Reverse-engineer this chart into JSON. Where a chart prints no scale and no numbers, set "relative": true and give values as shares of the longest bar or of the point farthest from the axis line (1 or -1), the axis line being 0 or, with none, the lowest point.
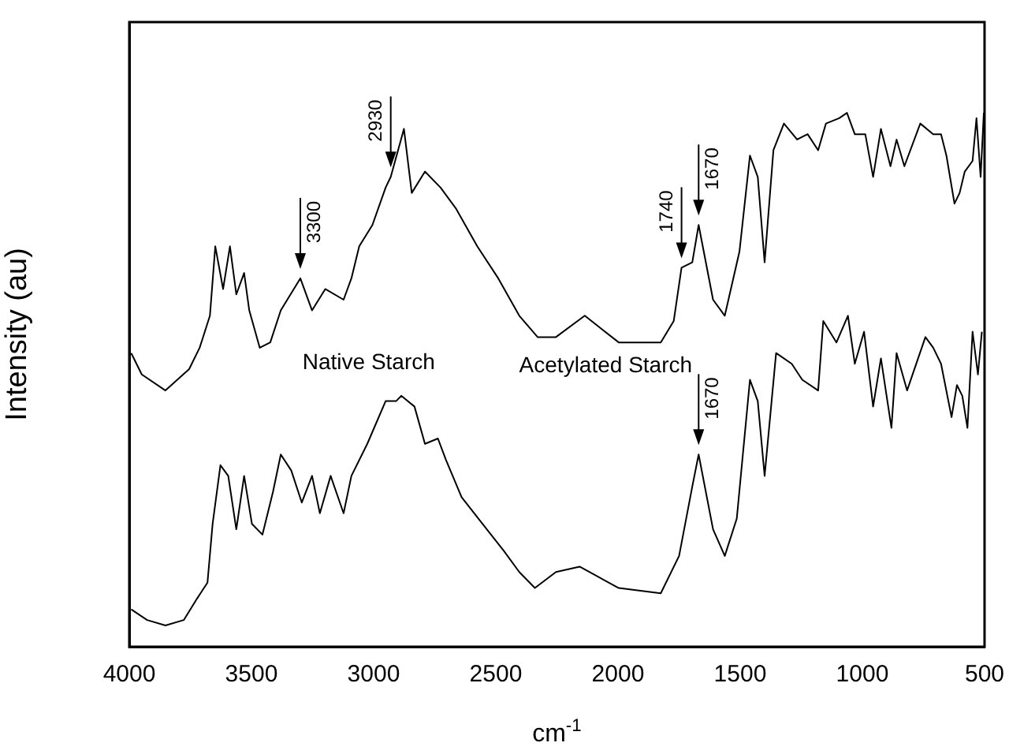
{
  "chart_data": {
    "type": "line",
    "relative": true,
    "xlabel": "cm$^{-1}$",
    "ylabel": "Intensity (au)",
    "xlim": [
      4000,
      500
    ],
    "xticks": [
      4000,
      3500,
      3000,
      2500,
      2000,
      1500,
      1000,
      500
    ],
    "grid": false,
    "legend": false,
    "marker": "none",
    "line_style": "solid",
    "series": [
      {
        "name": "Acetylated Starch",
        "color": "#000000",
        "x": [
          3992,
          3949,
          3852,
          3755,
          3712,
          3670,
          3648,
          3616,
          3588,
          3562,
          3530,
          3509,
          3466,
          3423,
          3380,
          3300,
          3252,
          3198,
          3123,
          3091,
          3059,
          3005,
          2951,
          2930,
          2876,
          2844,
          2790,
          2726,
          2662,
          2576,
          2490,
          2404,
          2329,
          2254,
          2136,
          1997,
          1825,
          1772,
          1740,
          1696,
          1670,
          1611,
          1563,
          1503,
          1460,
          1428,
          1400,
          1364,
          1321,
          1267,
          1224,
          1181,
          1149,
          1095,
          1063,
          1031,
          988,
          956,
          924,
          885,
          860,
          828,
          763,
          710,
          678,
          656,
          623,
          602,
          581,
          549,
          533,
          516,
          503
        ],
        "values": [
          0.55,
          0.51,
          0.48,
          0.52,
          0.56,
          0.62,
          0.75,
          0.67,
          0.75,
          0.66,
          0.7,
          0.63,
          0.56,
          0.57,
          0.63,
          0.69,
          0.63,
          0.67,
          0.65,
          0.69,
          0.75,
          0.79,
          0.86,
          0.88,
          0.97,
          0.85,
          0.89,
          0.86,
          0.82,
          0.75,
          0.69,
          0.62,
          0.58,
          0.58,
          0.62,
          0.57,
          0.57,
          0.61,
          0.71,
          0.72,
          0.79,
          0.65,
          0.62,
          0.74,
          0.92,
          0.88,
          0.72,
          0.93,
          0.98,
          0.95,
          0.96,
          0.93,
          0.98,
          0.99,
          1.0,
          0.96,
          0.96,
          0.88,
          0.97,
          0.9,
          0.95,
          0.9,
          0.98,
          0.96,
          0.96,
          0.92,
          0.83,
          0.85,
          0.89,
          0.91,
          0.99,
          0.88,
          1.0
        ]
      },
      {
        "name": "Native Starch",
        "color": "#000000",
        "x": [
          3992,
          3927,
          3852,
          3777,
          3723,
          3680,
          3659,
          3627,
          3595,
          3562,
          3530,
          3498,
          3455,
          3412,
          3380,
          3337,
          3294,
          3252,
          3220,
          3176,
          3123,
          3091,
          3026,
          2951,
          2908,
          2887,
          2833,
          2790,
          2737,
          2704,
          2640,
          2554,
          2468,
          2404,
          2340,
          2254,
          2157,
          1997,
          1825,
          1750,
          1696,
          1670,
          1611,
          1563,
          1514,
          1460,
          1428,
          1400,
          1353,
          1289,
          1246,
          1181,
          1160,
          1106,
          1059,
          1031,
          993,
          956,
          924,
          881,
          860,
          817,
          742,
          710,
          678,
          635,
          613,
          591,
          570,
          549,
          527,
          511
        ],
        "values": [
          0.07,
          0.05,
          0.04,
          0.05,
          0.09,
          0.12,
          0.23,
          0.34,
          0.32,
          0.22,
          0.32,
          0.23,
          0.21,
          0.29,
          0.36,
          0.33,
          0.27,
          0.32,
          0.25,
          0.32,
          0.25,
          0.32,
          0.38,
          0.46,
          0.46,
          0.47,
          0.45,
          0.38,
          0.39,
          0.35,
          0.28,
          0.23,
          0.18,
          0.14,
          0.11,
          0.14,
          0.15,
          0.11,
          0.1,
          0.17,
          0.3,
          0.36,
          0.22,
          0.17,
          0.24,
          0.5,
          0.46,
          0.32,
          0.55,
          0.53,
          0.5,
          0.48,
          0.61,
          0.57,
          0.62,
          0.53,
          0.59,
          0.45,
          0.54,
          0.41,
          0.55,
          0.48,
          0.58,
          0.56,
          0.53,
          0.43,
          0.49,
          0.47,
          0.41,
          0.59,
          0.51,
          0.59
        ]
      }
    ],
    "annotations": [
      {
        "text": "3300",
        "x": 3300,
        "y": 0.69
      },
      {
        "text": "2930",
        "x": 2930,
        "y": 0.88
      },
      {
        "text": "1740",
        "x": 1740,
        "y": 0.71
      },
      {
        "text": "1670",
        "x": 1670,
        "y": 0.79
      },
      {
        "text": "1670",
        "x": 1670,
        "y": 0.36
      }
    ]
  }
}
